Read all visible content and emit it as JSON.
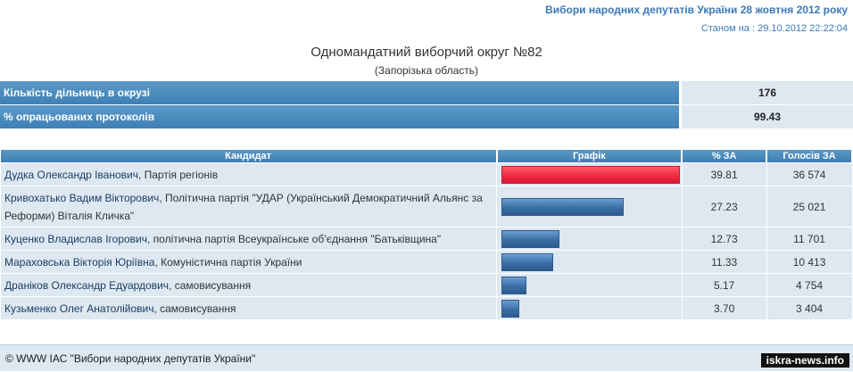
{
  "header": {
    "election_title": "Вибори народних депутатів України 28 жовтня 2012 року",
    "status_date": "Станом на : 29.10.2012 22:22:04"
  },
  "district": {
    "title": "Одномандатний виборчий округ №82",
    "region": "(Запорізька область)"
  },
  "stats": {
    "precincts_label": "Кількість дільниць в окрузі",
    "precincts_value": "176",
    "processed_label": "% опрацьованих протоколів",
    "processed_value": "99.43"
  },
  "table": {
    "headers": [
      "Кандидат",
      "Графік",
      "% ЗА",
      "Голосів ЗА"
    ],
    "rows": [
      {
        "name": "Дудка Олександр Іванович",
        "party": ", Партія регіонів",
        "pct": "39.81",
        "votes": "36 574",
        "bar_fraction": 1.0,
        "color": "#f02c44"
      },
      {
        "name": "Кривохатько Вадим Вікторович",
        "party": ", Політична партія \"УДАР (Український Демократичний Альянс за Реформи) Віталія Кличка\"",
        "pct": "27.23",
        "votes": "25 021",
        "bar_fraction": 0.684,
        "color": "#3b6ea6"
      },
      {
        "name": "Куценко Владислав Ігорович",
        "party": ", політична партія Всеукраїнське об’єднання \"Батьківщина\"",
        "pct": "12.73",
        "votes": "11 701",
        "bar_fraction": 0.32,
        "color": "#3b6ea6"
      },
      {
        "name": "Мараховська Вікторія Юріївна",
        "party": ", Комуністична партія України",
        "pct": "11.33",
        "votes": "10 413",
        "bar_fraction": 0.285,
        "color": "#3b6ea6"
      },
      {
        "name": "Драніков Олександр Едуардович",
        "party": ", самовисування",
        "pct": "5.17",
        "votes": "4 754",
        "bar_fraction": 0.13,
        "color": "#3b6ea6"
      },
      {
        "name": "Кузьменко Олег Анатолійович",
        "party": ", самовисування",
        "pct": "3.70",
        "votes": "3 404",
        "bar_fraction": 0.093,
        "color": "#3b6ea6"
      }
    ]
  },
  "footer": {
    "copyright": "© WWW ІАС \"Вибори народних депутатів України\""
  },
  "watermark": "iskra-news.info"
}
